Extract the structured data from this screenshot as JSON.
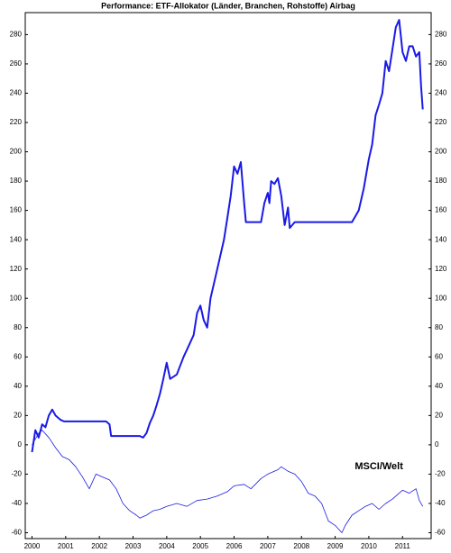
{
  "chart_data": {
    "type": "line",
    "title": "Performance: ETF-Allokator (Länder, Branchen, Rohstoffe) Airbag",
    "xlim": [
      1999.8,
      2011.85
    ],
    "xticks": [
      2000,
      2001,
      2002,
      2003,
      2004,
      2005,
      2006,
      2007,
      2008,
      2009,
      2010,
      2011
    ],
    "ylim": [
      -64,
      295
    ],
    "yticks": [
      -60,
      -40,
      -20,
      0,
      20,
      40,
      60,
      80,
      100,
      120,
      140,
      160,
      180,
      200,
      220,
      240,
      260,
      280
    ],
    "grid": false,
    "series": [
      {
        "color": "#1a1ae6",
        "x": [
          2000.0,
          2000.1,
          2000.2,
          2000.3,
          2000.4,
          2000.5,
          2000.6,
          2000.7,
          2000.85,
          2000.95,
          2002.2,
          2002.3,
          2002.35,
          2003.2,
          2003.3,
          2003.4,
          2003.5,
          2003.6,
          2003.7,
          2003.8,
          2003.9,
          2004.0,
          2004.1,
          2004.3,
          2004.5,
          2004.6,
          2004.8,
          2004.9,
          2005.0,
          2005.1,
          2005.2,
          2005.3,
          2005.5,
          2005.7,
          2005.8,
          2005.9,
          2006.0,
          2006.1,
          2006.2,
          2006.3,
          2006.35,
          2006.8,
          2006.9,
          2007.0,
          2007.05,
          2007.1,
          2007.2,
          2007.3,
          2007.4,
          2007.5,
          2007.6,
          2007.65,
          2007.8,
          2009.5,
          2009.7,
          2009.85,
          2010.0,
          2010.1,
          2010.2,
          2010.3,
          2010.4,
          2010.5,
          2010.6,
          2010.7,
          2010.8,
          2010.9,
          2011.0,
          2011.1,
          2011.2,
          2011.3,
          2011.4,
          2011.5,
          2011.55,
          2011.6
        ],
        "values": [
          -5,
          10,
          5,
          14,
          12,
          20,
          24,
          20,
          17,
          16,
          16,
          14,
          6,
          6,
          5,
          8,
          15,
          20,
          27,
          35,
          45,
          56,
          45,
          48,
          60,
          65,
          75,
          90,
          95,
          85,
          80,
          100,
          120,
          140,
          155,
          170,
          190,
          185,
          193,
          165,
          152,
          152,
          165,
          172,
          165,
          180,
          178,
          182,
          170,
          150,
          162,
          148,
          152,
          152,
          160,
          175,
          195,
          205,
          225,
          232,
          240,
          262,
          255,
          270,
          285,
          290,
          268,
          262,
          272,
          272,
          265,
          268,
          245,
          229
        ]
      },
      {
        "name": "MSCI/Welt",
        "color": "#1a1ae6",
        "x": [
          2000.0,
          2000.2,
          2000.3,
          2000.5,
          2000.7,
          2000.9,
          2001.1,
          2001.3,
          2001.5,
          2001.7,
          2001.9,
          2002.1,
          2002.3,
          2002.5,
          2002.7,
          2002.9,
          2003.1,
          2003.2,
          2003.4,
          2003.6,
          2003.8,
          2004.0,
          2004.3,
          2004.6,
          2004.9,
          2005.2,
          2005.5,
          2005.8,
          2006.0,
          2006.3,
          2006.5,
          2006.8,
          2007.0,
          2007.3,
          2007.4,
          2007.6,
          2007.8,
          2008.0,
          2008.2,
          2008.4,
          2008.6,
          2008.8,
          2009.0,
          2009.2,
          2009.3,
          2009.5,
          2009.7,
          2009.9,
          2010.1,
          2010.3,
          2010.5,
          2010.7,
          2010.9,
          2011.0,
          2011.2,
          2011.4,
          2011.5,
          2011.6
        ],
        "values": [
          0,
          8,
          10,
          5,
          -2,
          -8,
          -10,
          -15,
          -22,
          -30,
          -20,
          -22,
          -24,
          -30,
          -40,
          -45,
          -48,
          -50,
          -48,
          -45,
          -44,
          -42,
          -40,
          -42,
          -38,
          -37,
          -35,
          -32,
          -28,
          -27,
          -30,
          -23,
          -20,
          -17,
          -15,
          -18,
          -20,
          -25,
          -33,
          -35,
          -40,
          -52,
          -55,
          -60,
          -55,
          -48,
          -45,
          -42,
          -40,
          -44,
          -40,
          -37,
          -33,
          -31,
          -33,
          -30,
          -38,
          -42
        ]
      }
    ]
  }
}
